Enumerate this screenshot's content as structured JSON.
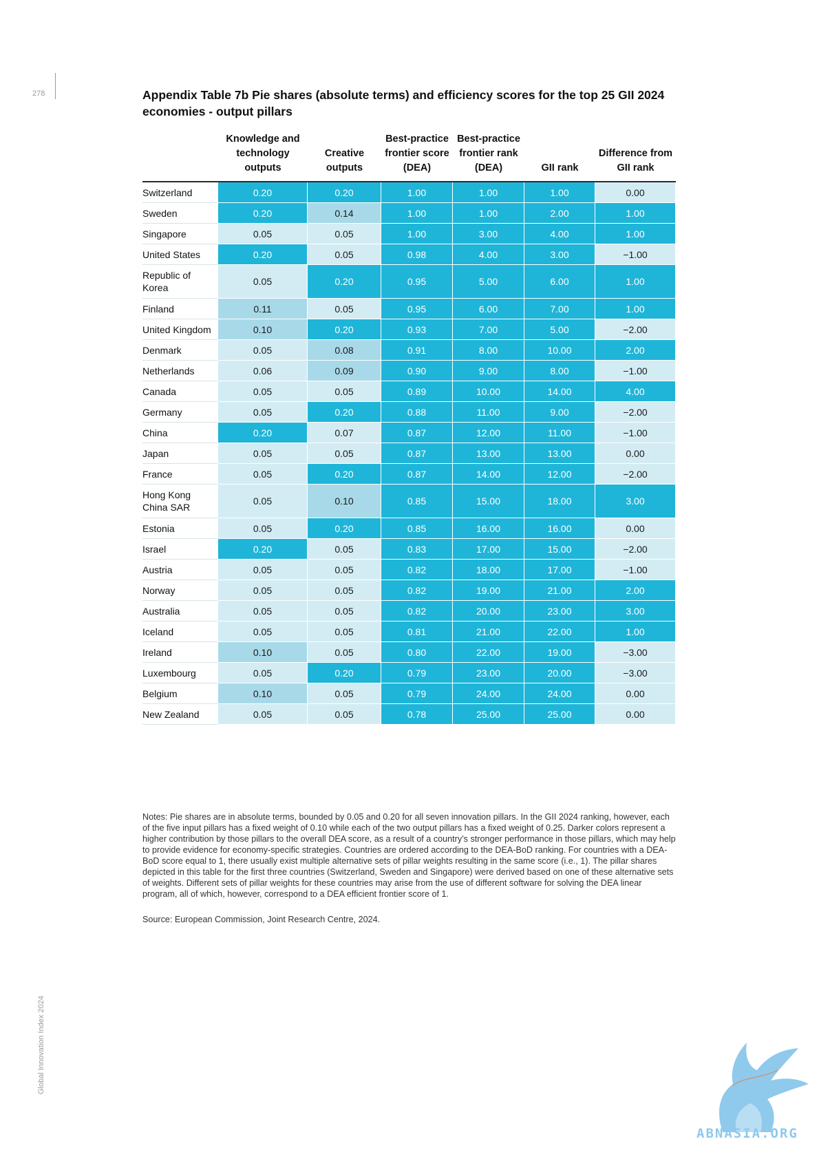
{
  "page": {
    "number": "278",
    "side_label": "Global Innovation Index 2024"
  },
  "title": "Appendix Table 7b Pie shares (absolute terms) and efficiency scores for the top 25 GII 2024 economies - output pillars",
  "table": {
    "headers": [
      "",
      "Knowledge and technology outputs",
      "Creative outputs",
      "Best-practice frontier score (DEA)",
      "Best-practice frontier rank (DEA)",
      "GII rank",
      "Difference from GII rank"
    ],
    "rows": [
      {
        "country": "Switzerland",
        "values": [
          "0.20",
          "0.20",
          "1.00",
          "1.00",
          "1.00",
          "0.00"
        ],
        "shades": [
          "c1",
          "c1",
          "c1",
          "c1",
          "c1",
          "c3"
        ]
      },
      {
        "country": "Sweden",
        "values": [
          "0.20",
          "0.14",
          "1.00",
          "1.00",
          "2.00",
          "1.00"
        ],
        "shades": [
          "c1",
          "c2",
          "c1",
          "c1",
          "c1",
          "c1"
        ]
      },
      {
        "country": "Singapore",
        "values": [
          "0.05",
          "0.05",
          "1.00",
          "3.00",
          "4.00",
          "1.00"
        ],
        "shades": [
          "c3",
          "c3",
          "c1",
          "c1",
          "c1",
          "c1"
        ]
      },
      {
        "country": "United States",
        "values": [
          "0.20",
          "0.05",
          "0.98",
          "4.00",
          "3.00",
          "−1.00"
        ],
        "shades": [
          "c1",
          "c3",
          "c1",
          "c1",
          "c1",
          "c3"
        ]
      },
      {
        "country": "Republic of Korea",
        "values": [
          "0.05",
          "0.20",
          "0.95",
          "5.00",
          "6.00",
          "1.00"
        ],
        "shades": [
          "c3",
          "c1",
          "c1",
          "c1",
          "c1",
          "c1"
        ]
      },
      {
        "country": "Finland",
        "values": [
          "0.11",
          "0.05",
          "0.95",
          "6.00",
          "7.00",
          "1.00"
        ],
        "shades": [
          "c2",
          "c3",
          "c1",
          "c1",
          "c1",
          "c1"
        ]
      },
      {
        "country": "United Kingdom",
        "values": [
          "0.10",
          "0.20",
          "0.93",
          "7.00",
          "5.00",
          "−2.00"
        ],
        "shades": [
          "c2",
          "c1",
          "c1",
          "c1",
          "c1",
          "c3"
        ]
      },
      {
        "country": "Denmark",
        "values": [
          "0.05",
          "0.08",
          "0.91",
          "8.00",
          "10.00",
          "2.00"
        ],
        "shades": [
          "c3",
          "c2",
          "c1",
          "c1",
          "c1",
          "c1"
        ]
      },
      {
        "country": "Netherlands",
        "values": [
          "0.06",
          "0.09",
          "0.90",
          "9.00",
          "8.00",
          "−1.00"
        ],
        "shades": [
          "c3",
          "c2",
          "c1",
          "c1",
          "c1",
          "c3"
        ]
      },
      {
        "country": "Canada",
        "values": [
          "0.05",
          "0.05",
          "0.89",
          "10.00",
          "14.00",
          "4.00"
        ],
        "shades": [
          "c3",
          "c3",
          "c1",
          "c1",
          "c1",
          "c1"
        ]
      },
      {
        "country": "Germany",
        "values": [
          "0.05",
          "0.20",
          "0.88",
          "11.00",
          "9.00",
          "−2.00"
        ],
        "shades": [
          "c3",
          "c1",
          "c1",
          "c1",
          "c1",
          "c3"
        ]
      },
      {
        "country": "China",
        "values": [
          "0.20",
          "0.07",
          "0.87",
          "12.00",
          "11.00",
          "−1.00"
        ],
        "shades": [
          "c1",
          "c3",
          "c1",
          "c1",
          "c1",
          "c3"
        ]
      },
      {
        "country": "Japan",
        "values": [
          "0.05",
          "0.05",
          "0.87",
          "13.00",
          "13.00",
          "0.00"
        ],
        "shades": [
          "c3",
          "c3",
          "c1",
          "c1",
          "c1",
          "c3"
        ]
      },
      {
        "country": "France",
        "values": [
          "0.05",
          "0.20",
          "0.87",
          "14.00",
          "12.00",
          "−2.00"
        ],
        "shades": [
          "c3",
          "c1",
          "c1",
          "c1",
          "c1",
          "c3"
        ]
      },
      {
        "country": "Hong Kong China SAR",
        "values": [
          "0.05",
          "0.10",
          "0.85",
          "15.00",
          "18.00",
          "3.00"
        ],
        "shades": [
          "c3",
          "c2",
          "c1",
          "c1",
          "c1",
          "c1"
        ]
      },
      {
        "country": "Estonia",
        "values": [
          "0.05",
          "0.20",
          "0.85",
          "16.00",
          "16.00",
          "0.00"
        ],
        "shades": [
          "c3",
          "c1",
          "c1",
          "c1",
          "c1",
          "c3"
        ]
      },
      {
        "country": "Israel",
        "values": [
          "0.20",
          "0.05",
          "0.83",
          "17.00",
          "15.00",
          "−2.00"
        ],
        "shades": [
          "c1",
          "c3",
          "c1",
          "c1",
          "c1",
          "c3"
        ]
      },
      {
        "country": "Austria",
        "values": [
          "0.05",
          "0.05",
          "0.82",
          "18.00",
          "17.00",
          "−1.00"
        ],
        "shades": [
          "c3",
          "c3",
          "c1",
          "c1",
          "c1",
          "c3"
        ]
      },
      {
        "country": "Norway",
        "values": [
          "0.05",
          "0.05",
          "0.82",
          "19.00",
          "21.00",
          "2.00"
        ],
        "shades": [
          "c3",
          "c3",
          "c1",
          "c1",
          "c1",
          "c1"
        ]
      },
      {
        "country": "Australia",
        "values": [
          "0.05",
          "0.05",
          "0.82",
          "20.00",
          "23.00",
          "3.00"
        ],
        "shades": [
          "c3",
          "c3",
          "c1",
          "c1",
          "c1",
          "c1"
        ]
      },
      {
        "country": "Iceland",
        "values": [
          "0.05",
          "0.05",
          "0.81",
          "21.00",
          "22.00",
          "1.00"
        ],
        "shades": [
          "c3",
          "c3",
          "c1",
          "c1",
          "c1",
          "c1"
        ]
      },
      {
        "country": "Ireland",
        "values": [
          "0.10",
          "0.05",
          "0.80",
          "22.00",
          "19.00",
          "−3.00"
        ],
        "shades": [
          "c2",
          "c3",
          "c1",
          "c1",
          "c1",
          "c3"
        ]
      },
      {
        "country": "Luxembourg",
        "values": [
          "0.05",
          "0.20",
          "0.79",
          "23.00",
          "20.00",
          "−3.00"
        ],
        "shades": [
          "c3",
          "c1",
          "c1",
          "c1",
          "c1",
          "c3"
        ]
      },
      {
        "country": "Belgium",
        "values": [
          "0.10",
          "0.05",
          "0.79",
          "24.00",
          "24.00",
          "0.00"
        ],
        "shades": [
          "c2",
          "c3",
          "c1",
          "c1",
          "c1",
          "c3"
        ]
      },
      {
        "country": "New Zealand",
        "values": [
          "0.05",
          "0.05",
          "0.78",
          "25.00",
          "25.00",
          "0.00"
        ],
        "shades": [
          "c3",
          "c3",
          "c1",
          "c1",
          "c1",
          "c3"
        ]
      }
    ]
  },
  "notes": "Notes: Pie shares are in absolute terms, bounded by 0.05 and 0.20 for all seven innovation pillars. In the GII 2024 ranking, however, each of the five input pillars has a fixed weight of 0.10 while each of the two output pillars has a fixed weight of 0.25. Darker colors represent a higher contribution by those pillars to the overall DEA score, as a result of a country’s stronger performance in those pillars, which may help to provide evidence for economy-specific strategies. Countries are ordered according to the DEA-BoD ranking. For countries with a DEA-BoD score equal to 1, there usually exist multiple alternative sets of pillar weights resulting in the same score (i.e., 1). The pillar shares depicted in this table for the first three countries (Switzerland, Sweden and Singapore) were derived based on one of these alternative sets of weights. Different sets of pillar weights for these countries may arise from the use of different software for solving the DEA linear program, all of which, however, correspond to a DEA efficient frontier score of 1.",
  "source": "Source: European Commission, Joint Research Centre, 2024.",
  "watermark": "ABNASIA.ORG",
  "colors": {
    "dark_cell": "#1fb5d8",
    "medium_cell": "#a8d9e9",
    "light_cell": "#d3ecf4"
  }
}
